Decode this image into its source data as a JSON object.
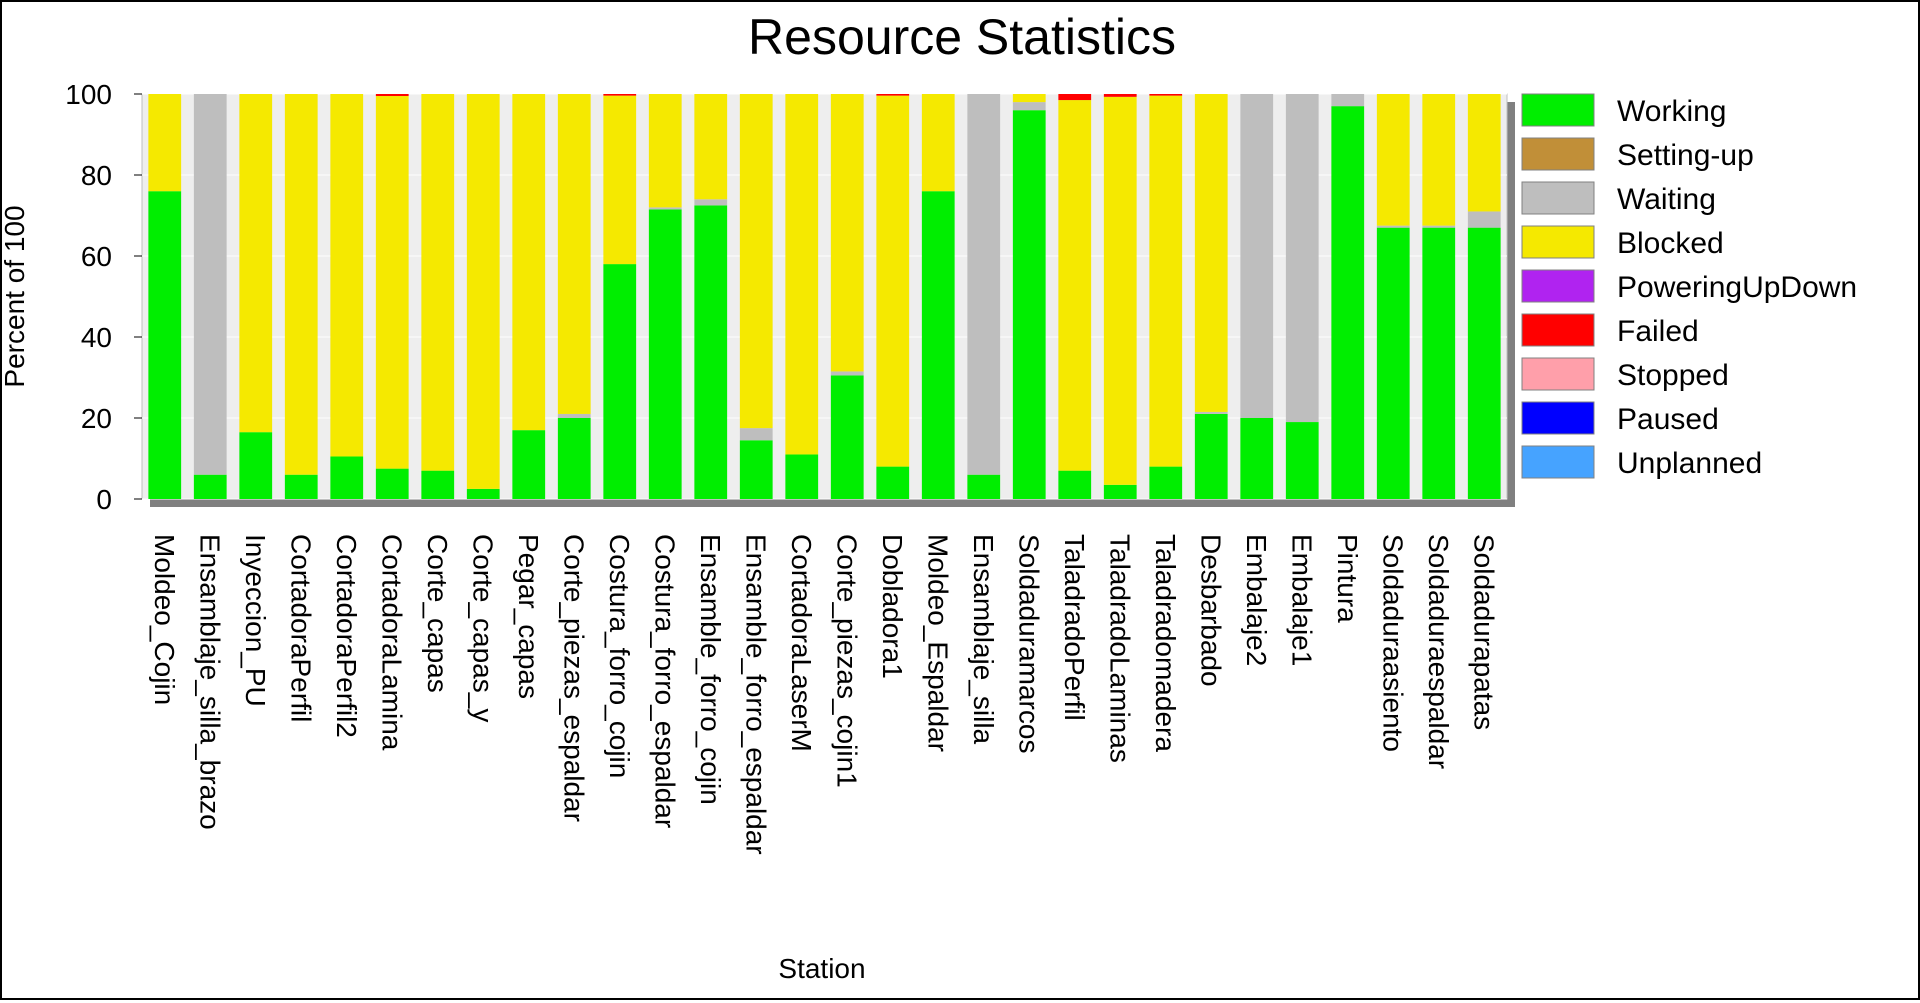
{
  "chart_data": {
    "type": "bar",
    "stacked": true,
    "title": "Resource Statistics",
    "xlabel": "Station",
    "ylabel": "Percent of 100",
    "ylim": [
      0,
      100
    ],
    "yticks": [
      0,
      20,
      40,
      60,
      80,
      100
    ],
    "grid": true,
    "legend_position": "right",
    "categories": [
      "Moldeo_Cojin",
      "Ensamblaje_silla_brazo",
      "Inyeccion_PU",
      "CortadoraPerfil",
      "CortadoraPerfil2",
      "CortadoraLamina",
      "Corte_capas",
      "Corte_capas_y",
      "Pegar_capas",
      "Corte_piezas_espaldar",
      "Costura_forro_cojin",
      "Costura_forro_espaldar",
      "Ensamble_forro_cojin",
      "Ensamble_forro_espaldar",
      "CortadoraLaserM",
      "Corte_piezas_cojin1",
      "Dobladora1",
      "Moldeo_Espaldar",
      "Ensamblaje_silla",
      "Soldaduramarcos",
      "TaladradoPerfil",
      "TaladradoLaminas",
      "Taladradomadera",
      "Desbarbado",
      "Embalaje2",
      "Embalaje1",
      "Pintura",
      "Soldaduraasiento",
      "Soldaduraespaldar",
      "Soldadurapatas"
    ],
    "series": [
      {
        "name": "Working",
        "color": "#00EE00",
        "values": [
          76,
          6,
          16.5,
          6,
          10.5,
          7.5,
          7,
          2.5,
          17,
          20,
          58,
          71.5,
          72.5,
          14.5,
          11,
          30.5,
          8,
          76,
          6,
          96,
          7,
          3.5,
          8,
          21,
          20,
          19,
          97,
          67,
          67,
          67
        ]
      },
      {
        "name": "Setting-up",
        "color": "#C18F38",
        "values": [
          0,
          0,
          0,
          0,
          0,
          0,
          0,
          0,
          0,
          0,
          0,
          0,
          0,
          0,
          0,
          0,
          0,
          0,
          0,
          0,
          0,
          0,
          0,
          0,
          0,
          0,
          0,
          0,
          0,
          0
        ]
      },
      {
        "name": "Waiting",
        "color": "#BEBEBE",
        "values": [
          0,
          94,
          0,
          0,
          0,
          0,
          0,
          0,
          0,
          1,
          0,
          0.5,
          1.5,
          3,
          0,
          1,
          0,
          0,
          94,
          2,
          0,
          0,
          0,
          0.5,
          80,
          81,
          3,
          0.5,
          0.5,
          4
        ]
      },
      {
        "name": "Blocked",
        "color": "#F5E900",
        "values": [
          24,
          0,
          83.5,
          94,
          89.5,
          92,
          93,
          97.5,
          83,
          79,
          41.6,
          28,
          26,
          82.5,
          89,
          68.5,
          91.6,
          24,
          0,
          2,
          91.5,
          95.8,
          91.6,
          78.5,
          0,
          0,
          0,
          32.5,
          32.5,
          29
        ]
      },
      {
        "name": "PoweringUpDown",
        "color": "#B023F0",
        "values": [
          0,
          0,
          0,
          0,
          0,
          0,
          0,
          0,
          0,
          0,
          0,
          0,
          0,
          0,
          0,
          0,
          0,
          0,
          0,
          0,
          0,
          0,
          0,
          0,
          0,
          0,
          0,
          0,
          0,
          0
        ]
      },
      {
        "name": "Failed",
        "color": "#FF0000",
        "values": [
          0,
          0,
          0,
          0,
          0,
          0.5,
          0,
          0,
          0,
          0,
          0.4,
          0,
          0,
          0,
          0,
          0,
          0.4,
          0,
          0,
          0,
          1.5,
          0.7,
          0.4,
          0,
          0,
          0,
          0,
          0,
          0,
          0
        ]
      },
      {
        "name": "Stopped",
        "color": "#FF9FAA",
        "values": [
          0,
          0,
          0,
          0,
          0,
          0,
          0,
          0,
          0,
          0,
          0,
          0,
          0,
          0,
          0,
          0,
          0,
          0,
          0,
          0,
          0,
          0,
          0,
          0,
          0,
          0,
          0,
          0,
          0,
          0
        ]
      },
      {
        "name": "Paused",
        "color": "#0000FF",
        "values": [
          0,
          0,
          0,
          0,
          0,
          0,
          0,
          0,
          0,
          0,
          0,
          0,
          0,
          0,
          0,
          0,
          0,
          0,
          0,
          0,
          0,
          0,
          0,
          0,
          0,
          0,
          0,
          0,
          0,
          0
        ]
      },
      {
        "name": "Unplanned",
        "color": "#46A3FF",
        "values": [
          0,
          0,
          0,
          0,
          0,
          0,
          0,
          0,
          0,
          0,
          0,
          0,
          0,
          0,
          0,
          0,
          0,
          0,
          0,
          0,
          0,
          0,
          0,
          0,
          0,
          0,
          0,
          0,
          0,
          0
        ]
      }
    ]
  }
}
